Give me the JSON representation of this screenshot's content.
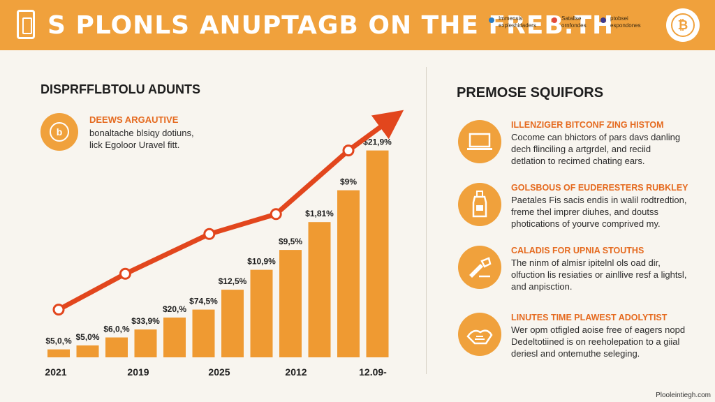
{
  "header": {
    "title": "S PLONLS ANUPTAGB ON  THE FREB.TH",
    "groups": [
      {
        "line1": "Immensis",
        "line2": "expleshidaders",
        "color": "#2e7fc4"
      },
      {
        "line1": "Satallse",
        "line2": "ornfondes",
        "color": "#e24a3b"
      },
      {
        "line1": "ptobsei",
        "line2": "espondones",
        "color": "#3d3a8c"
      }
    ],
    "coin_symbol": "₿"
  },
  "left": {
    "heading": "DISPRFFLBTOLU ADUNTS",
    "sub_title": "DEEWS ARGAUTIVE",
    "sub_text": [
      "bonaltache blsiqy dotiuns,",
      "lick Egoloor Uravel fitt."
    ],
    "icon_symbol": "b"
  },
  "chart_data": {
    "type": "bar",
    "x_labels": [
      "2021",
      "2019",
      "2025",
      "2012",
      "12.09-"
    ],
    "bar_labels": [
      "$5,0,%",
      "$5,0%",
      "$6,0,%",
      "$33,9%",
      "$20,%",
      "$74,5%",
      "$12,5%",
      "$10,9%",
      "$9,5%",
      "$1,81%",
      "$9%",
      "$21,9%"
    ],
    "values": [
      1,
      1.5,
      2.5,
      3.5,
      5,
      6,
      8.5,
      11,
      13.5,
      17,
      21,
      26
    ],
    "trend_line": {
      "points": [
        [
          0,
          6
        ],
        [
          2.3,
          10.5
        ],
        [
          5.2,
          15.5
        ],
        [
          7.5,
          18
        ],
        [
          10,
          26
        ],
        [
          11.5,
          30
        ]
      ],
      "color": "#e2461d"
    },
    "bar_color": "#ef9a32",
    "grid": false
  },
  "right": {
    "heading": "PREMOSE SQUIFORS",
    "items": [
      {
        "title": "ILLENZIGER BITCONF ZING HISTOM",
        "lines": [
          "Cocome can bhictors of pars davs danling",
          "dech flinciling a artgrdel, and reciid",
          "detlation to recimed chating ears."
        ]
      },
      {
        "title": "GOLSBOUS OF EUDERESTERS RUBKLEY",
        "lines": [
          "Paetales Fis sacis endis in walil rodtredtion,",
          "freme thel imprer diuhes, and doutss",
          "photications of yourve comprived my."
        ]
      },
      {
        "title": "CALADIS FOR UPNIA STOUTHS",
        "lines": [
          "The ninm of almisr ipitelnl ols oad dir,",
          "olfuction lis resiaties or ainllive resf a lightsl,",
          "and anpisction."
        ]
      },
      {
        "title": "LINUTES TIME PLAWEST ADOLYTIST",
        "lines": [
          "Wer opm otfigled aoise free of eagers nopd",
          "Dedeltotiined is on reeholepation to a giial",
          "deriesl and ontemuthe seleging."
        ]
      }
    ]
  },
  "source": "Plooleintiegh.com"
}
